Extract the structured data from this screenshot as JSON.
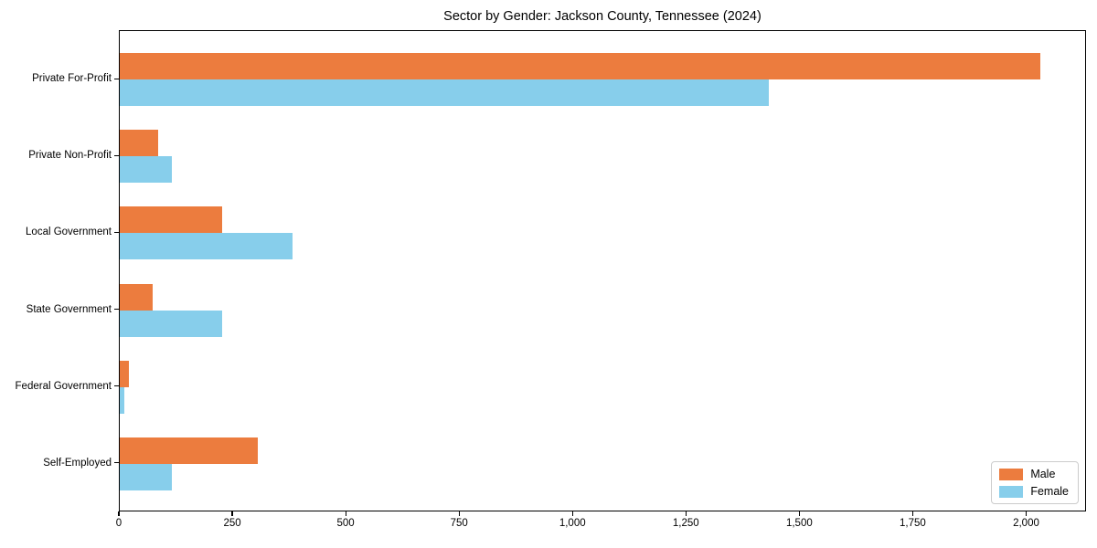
{
  "title": "Sector by Gender: Jackson County, Tennessee (2024)",
  "chart_data": {
    "type": "bar",
    "orientation": "horizontal",
    "title": "Sector by Gender: Jackson County, Tennessee (2024)",
    "categories": [
      "Private For-Profit",
      "Private Non-Profit",
      "Local Government",
      "State Government",
      "Federal Government",
      "Self-Employed"
    ],
    "series": [
      {
        "name": "Male",
        "color": "#ec7c3e",
        "values": [
          2030,
          85,
          225,
          73,
          20,
          305
        ]
      },
      {
        "name": "Female",
        "color": "#87ceeb",
        "values": [
          1430,
          115,
          380,
          225,
          10,
          115
        ]
      }
    ],
    "xlabel": "",
    "ylabel": "",
    "xlim": [
      0,
      2132
    ],
    "xticks": [
      0,
      250,
      500,
      750,
      1000,
      1250,
      1500,
      1750,
      2000
    ],
    "xtick_labels": [
      "0",
      "250",
      "500",
      "750",
      "1,000",
      "1,250",
      "1,500",
      "1,750",
      "2,000"
    ],
    "grid": false,
    "legend_position": "lower right",
    "plot_border_color": "#000000",
    "background_color": "#ffffff"
  }
}
